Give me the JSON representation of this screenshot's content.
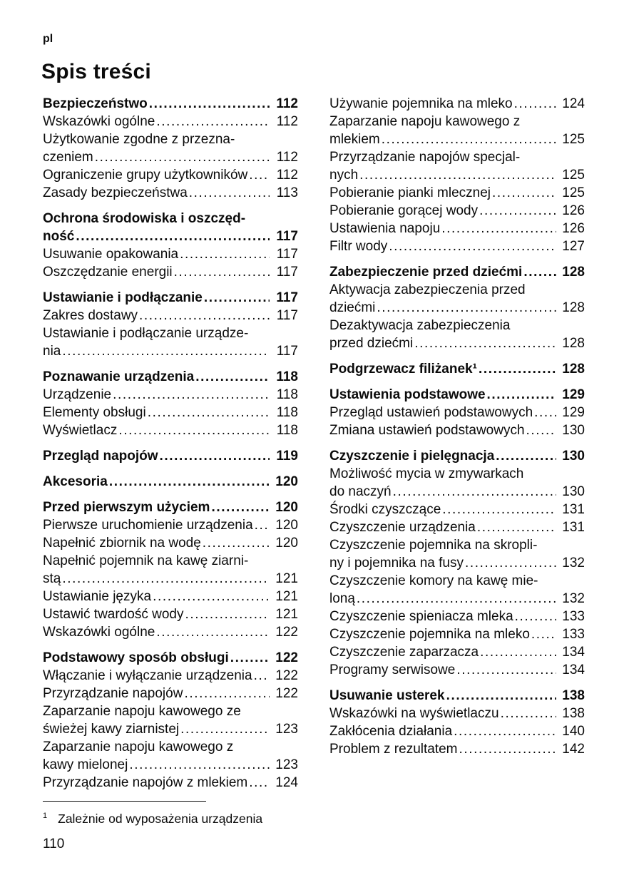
{
  "lang_label": "pl",
  "page_title": "Spis treści",
  "text_color": "#0b0b0b",
  "background_color": "#ffffff",
  "columns": [
    {
      "sections": [
        {
          "header": {
            "lines": [
              "Bezpieczeństwo"
            ],
            "page": "112"
          },
          "entries": [
            {
              "lines": [
                "Wskazówki ogólne"
              ],
              "page": "112"
            },
            {
              "lines": [
                "Użytkowanie zgodne z przezna-",
                "czeniem"
              ],
              "page": "112"
            },
            {
              "lines": [
                "Ograniczenie grupy użytkowników"
              ],
              "page": "112"
            },
            {
              "lines": [
                "Zasady bezpieczeństwa"
              ],
              "page": "113"
            }
          ]
        },
        {
          "header": {
            "lines": [
              "Ochrona środowiska i oszczęd-",
              "ność"
            ],
            "page": "117"
          },
          "entries": [
            {
              "lines": [
                "Usuwanie opakowania"
              ],
              "page": "117"
            },
            {
              "lines": [
                "Oszczędzanie energii"
              ],
              "page": "117"
            }
          ]
        },
        {
          "header": {
            "lines": [
              "Ustawianie i podłączanie"
            ],
            "page": "117"
          },
          "entries": [
            {
              "lines": [
                "Zakres dostawy"
              ],
              "page": "117"
            },
            {
              "lines": [
                "Ustawianie i podłączanie urządze-",
                "nia"
              ],
              "page": "117"
            }
          ]
        },
        {
          "header": {
            "lines": [
              "Poznawanie urządzenia"
            ],
            "page": "118"
          },
          "entries": [
            {
              "lines": [
                "Urządzenie"
              ],
              "page": "118"
            },
            {
              "lines": [
                "Elementy obsługi"
              ],
              "page": "118"
            },
            {
              "lines": [
                "Wyświetlacz"
              ],
              "page": "118"
            }
          ]
        },
        {
          "header": {
            "lines": [
              "Przegląd napojów"
            ],
            "page": "119"
          },
          "entries": []
        },
        {
          "header": {
            "lines": [
              "Akcesoria"
            ],
            "page": "120"
          },
          "entries": []
        },
        {
          "header": {
            "lines": [
              "Przed pierwszym użyciem"
            ],
            "page": "120"
          },
          "entries": [
            {
              "lines": [
                "Pierwsze uruchomienie urządzenia"
              ],
              "page": "120"
            },
            {
              "lines": [
                "Napełnić zbiornik na wodę"
              ],
              "page": "120"
            },
            {
              "lines": [
                "Napełnić pojemnik na kawę ziarni-",
                "stą"
              ],
              "page": "121"
            },
            {
              "lines": [
                "Ustawianie języka"
              ],
              "page": "121"
            },
            {
              "lines": [
                "Ustawić twardość wody"
              ],
              "page": "121"
            },
            {
              "lines": [
                "Wskazówki ogólne"
              ],
              "page": "122"
            }
          ]
        },
        {
          "header": {
            "lines": [
              "Podstawowy sposób obsługi"
            ],
            "page": "122"
          },
          "entries": [
            {
              "lines": [
                "Włączanie i wyłączanie urządzenia"
              ],
              "page": "122"
            },
            {
              "lines": [
                "Przyrządzanie napojów"
              ],
              "page": "122"
            },
            {
              "lines": [
                "Zaparzanie napoju kawowego ze",
                "świeżej kawy ziarnistej"
              ],
              "page": "123"
            },
            {
              "lines": [
                "Zaparzanie napoju kawowego z",
                "kawy mielonej"
              ],
              "page": "123"
            },
            {
              "lines": [
                "Przyrządzanie napojów z mlekiem"
              ],
              "page": "124"
            }
          ]
        }
      ]
    },
    {
      "sections": [
        {
          "header": null,
          "entries": [
            {
              "lines": [
                "Używanie pojemnika na mleko"
              ],
              "page": "124"
            },
            {
              "lines": [
                "Zaparzanie napoju kawowego z",
                "mlekiem"
              ],
              "page": "125"
            },
            {
              "lines": [
                "Przyrządzanie napojów specjal-",
                "nych"
              ],
              "page": "125"
            },
            {
              "lines": [
                "Pobieranie pianki mlecznej"
              ],
              "page": "125"
            },
            {
              "lines": [
                "Pobieranie gorącej wody"
              ],
              "page": "126"
            },
            {
              "lines": [
                "Ustawienia napoju"
              ],
              "page": "126"
            },
            {
              "lines": [
                "Filtr wody"
              ],
              "page": "127"
            }
          ]
        },
        {
          "header": {
            "lines": [
              "Zabezpieczenie przed dziećmi"
            ],
            "page": "128"
          },
          "entries": [
            {
              "lines": [
                "Aktywacja zabezpieczenia przed",
                "dziećmi"
              ],
              "page": "128"
            },
            {
              "lines": [
                "Dezaktywacja zabezpieczenia",
                "przed dziećmi"
              ],
              "page": "128"
            }
          ]
        },
        {
          "header": {
            "lines": [
              "Podgrzewacz filiżanek¹"
            ],
            "page": "128"
          },
          "entries": []
        },
        {
          "header": {
            "lines": [
              "Ustawienia podstawowe"
            ],
            "page": "129"
          },
          "entries": [
            {
              "lines": [
                "Przegląd ustawień podstawowych"
              ],
              "page": "129"
            },
            {
              "lines": [
                "Zmiana ustawień podstawowych"
              ],
              "page": "130"
            }
          ]
        },
        {
          "header": {
            "lines": [
              "Czyszczenie i pielęgnacja"
            ],
            "page": "130"
          },
          "entries": [
            {
              "lines": [
                "Możliwość mycia w zmywarkach",
                "do naczyń"
              ],
              "page": "130"
            },
            {
              "lines": [
                "Środki czyszczące"
              ],
              "page": "131"
            },
            {
              "lines": [
                "Czyszczenie urządzenia"
              ],
              "page": "131"
            },
            {
              "lines": [
                "Czyszczenie pojemnika na skropli-",
                "ny i pojemnika na fusy"
              ],
              "page": "132"
            },
            {
              "lines": [
                "Czyszczenie komory na kawę mie-",
                "loną"
              ],
              "page": "132"
            },
            {
              "lines": [
                "Czyszczenie spieniacza mleka"
              ],
              "page": "133"
            },
            {
              "lines": [
                "Czyszczenie pojemnika na mleko"
              ],
              "page": "133"
            },
            {
              "lines": [
                "Czyszczenie zaparzacza"
              ],
              "page": "134"
            },
            {
              "lines": [
                "Programy serwisowe"
              ],
              "page": "134"
            }
          ]
        },
        {
          "header": {
            "lines": [
              "Usuwanie usterek"
            ],
            "page": "138"
          },
          "entries": [
            {
              "lines": [
                "Wskazówki na wyświetlaczu"
              ],
              "page": "138"
            },
            {
              "lines": [
                "Zakłócenia działania"
              ],
              "page": "140"
            },
            {
              "lines": [
                "Problem z rezultatem"
              ],
              "page": "142"
            }
          ]
        }
      ]
    }
  ],
  "footnote": {
    "marker": "1",
    "text": "Zależnie od wyposażenia urządzenia"
  },
  "page_number": "110"
}
